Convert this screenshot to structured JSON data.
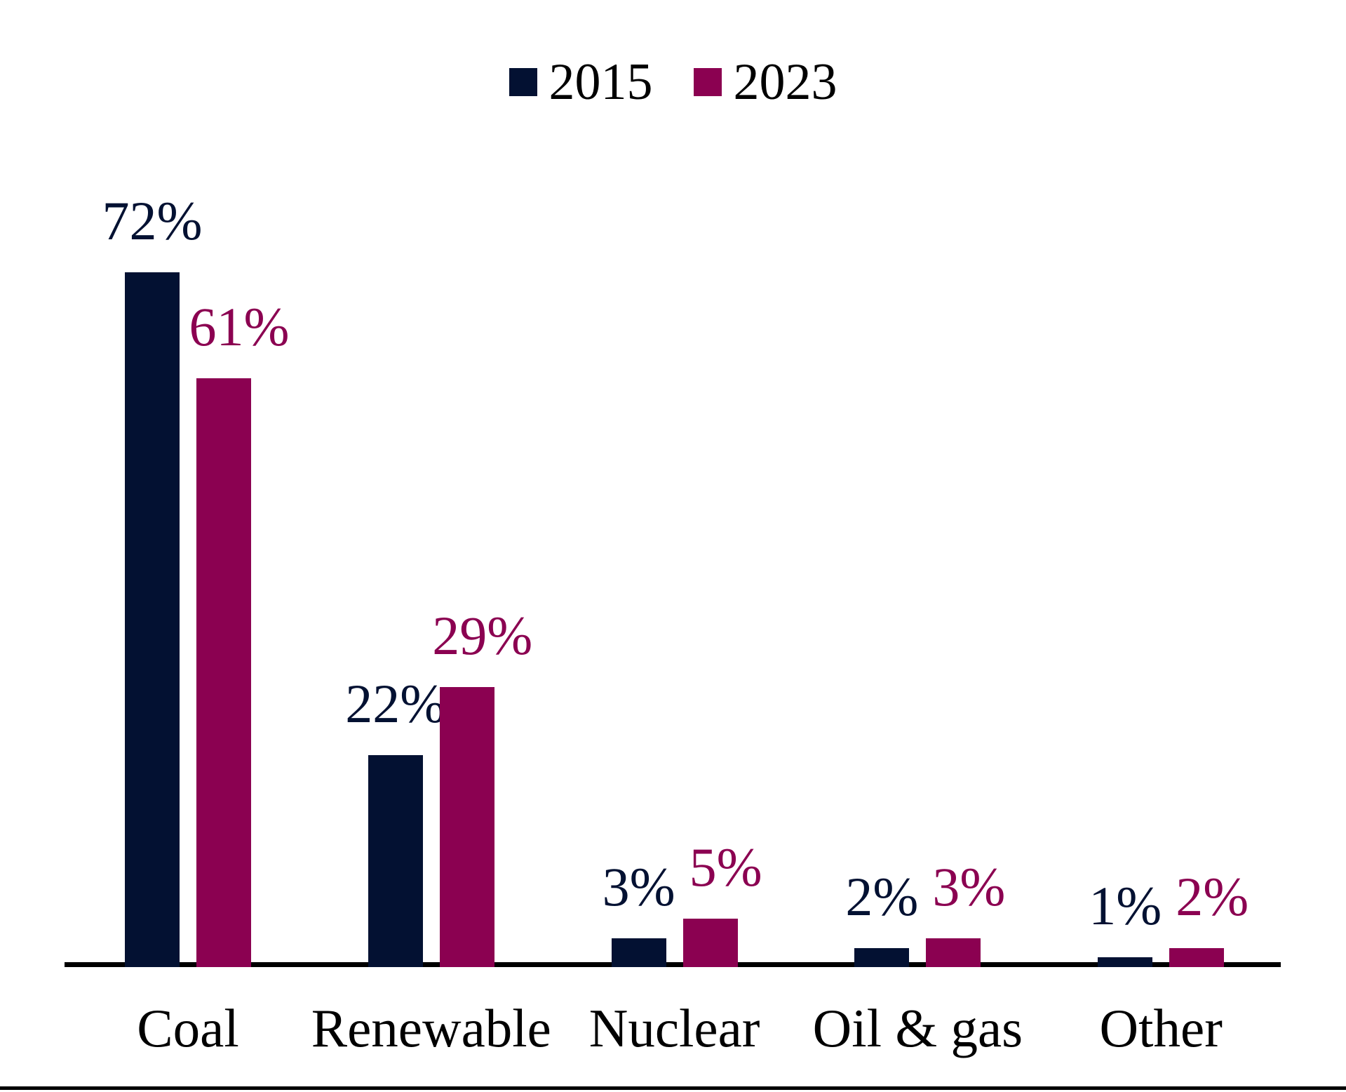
{
  "legend": {
    "position": "top",
    "items": [
      {
        "label": "2015",
        "color": "#031132"
      },
      {
        "label": "2023",
        "color": "#8B0151"
      }
    ]
  },
  "chart_data": {
    "type": "bar",
    "title": "",
    "xlabel": "",
    "ylabel": "",
    "unit": "%",
    "categories": [
      "Coal",
      "Renewable",
      "Nuclear",
      "Oil & gas",
      "Other"
    ],
    "series": [
      {
        "name": "2015",
        "color": "#031132",
        "values": [
          72,
          22,
          3,
          2,
          1
        ],
        "labels": [
          "72%",
          "22%",
          "3%",
          "2%",
          "1%"
        ]
      },
      {
        "name": "2023",
        "color": "#8B0151",
        "values": [
          61,
          29,
          5,
          3,
          2
        ],
        "labels": [
          "61%",
          "29%",
          "5%",
          "3%",
          "2%"
        ]
      }
    ],
    "ylim": [
      0,
      80
    ],
    "grid": false,
    "y_axis_visible": false,
    "x_axis_line": true,
    "legend_position": "top",
    "value_labels_shown": true
  }
}
